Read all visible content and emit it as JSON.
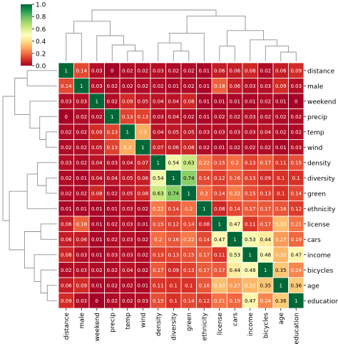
{
  "chart_data": {
    "type": "heatmap",
    "labels": [
      "distance",
      "male",
      "weekend",
      "precip",
      "temp",
      "wind",
      "density",
      "diversity",
      "green",
      "ethnicity",
      "license",
      "cars",
      "income",
      "bicycles",
      "age",
      "education"
    ],
    "matrix": [
      [
        "1",
        "0.14",
        "0.03",
        "0",
        "0.02",
        "0.02",
        "0.03",
        "0.02",
        "0.02",
        "0.01",
        "0.06",
        "0.06",
        "0.08",
        "0.02",
        "0.06",
        "0.09"
      ],
      [
        "0.14",
        "1",
        "0.03",
        "0.02",
        "0.02",
        "0.02",
        "0.02",
        "0.01",
        "0.02",
        "0.01",
        "0.18",
        "0.06",
        "0.03",
        "0.03",
        "0.09",
        "0.03"
      ],
      [
        "0.03",
        "0.03",
        "1",
        "0.02",
        "0.09",
        "0.05",
        "0.04",
        "0.04",
        "0.08",
        "0.01",
        "0.01",
        "0.01",
        "0.01",
        "0.02",
        "0.01",
        "0"
      ],
      [
        "0",
        "0.02",
        "0.02",
        "1",
        "0.13",
        "0.13",
        "0.03",
        "0.04",
        "0.02",
        "0.01",
        "0.02",
        "0.02",
        "0.03",
        "0.02",
        "0.02",
        "0.02"
      ],
      [
        "0.02",
        "0.02",
        "0.09",
        "0.13",
        "1",
        "0.3",
        "0.04",
        "0.05",
        "0.05",
        "0.03",
        "0.03",
        "0.03",
        "0.03",
        "0.04",
        "0.02",
        "0.02"
      ],
      [
        "0.02",
        "0.02",
        "0.05",
        "0.13",
        "0.3",
        "1",
        "0.07",
        "0.06",
        "0.08",
        "0.02",
        "0.01",
        "0.02",
        "0.02",
        "0.02",
        "0.01",
        "0.03"
      ],
      [
        "0.03",
        "0.02",
        "0.04",
        "0.03",
        "0.04",
        "0.07",
        "1",
        "0.54",
        "0.63",
        "0.22",
        "0.15",
        "0.2",
        "0.13",
        "0.17",
        "0.11",
        "0.15"
      ],
      [
        "0.02",
        "0.01",
        "0.04",
        "0.04",
        "0.05",
        "0.06",
        "0.54",
        "1",
        "0.74",
        "0.14",
        "0.12",
        "0.16",
        "0.13",
        "0.09",
        "0.1",
        "0.1"
      ],
      [
        "0.02",
        "0.02",
        "0.08",
        "0.02",
        "0.05",
        "0.08",
        "0.63",
        "0.74",
        "1",
        "0.2",
        "0.14",
        "0.22",
        "0.15",
        "0.13",
        "0.1",
        "0.14"
      ],
      [
        "0.01",
        "0.01",
        "0.01",
        "0.01",
        "0.03",
        "0.02",
        "0.22",
        "0.14",
        "0.2",
        "1",
        "0.08",
        "0.14",
        "0.17",
        "0.17",
        "0.16",
        "0.12"
      ],
      [
        "0.06",
        "0.18",
        "0.01",
        "0.02",
        "0.03",
        "0.01",
        "0.15",
        "0.12",
        "0.14",
        "0.08",
        "1",
        "0.47",
        "0.11",
        "0.17",
        "0.33",
        "0.21"
      ],
      [
        "0.06",
        "0.06",
        "0.01",
        "0.02",
        "0.03",
        "0.02",
        "0.2",
        "0.16",
        "0.22",
        "0.14",
        "0.47",
        "1",
        "0.53",
        "0.44",
        "0.27",
        "0.19"
      ],
      [
        "0.08",
        "0.03",
        "0.01",
        "0.03",
        "0.03",
        "0.02",
        "0.13",
        "0.13",
        "0.15",
        "0.17",
        "0.11",
        "0.53",
        "1",
        "0.48",
        "0.32",
        "0.47"
      ],
      [
        "0.02",
        "0.03",
        "0.02",
        "0.02",
        "0.04",
        "0.02",
        "0.17",
        "0.09",
        "0.13",
        "0.17",
        "0.17",
        "0.44",
        "0.48",
        "1",
        "0.35",
        "0.24"
      ],
      [
        "0.06",
        "0.09",
        "0.01",
        "0.02",
        "0.02",
        "0.01",
        "0.11",
        "0.1",
        "0.1",
        "0.16",
        "0.33",
        "0.27",
        "0.32",
        "0.35",
        "1",
        "0.36"
      ],
      [
        "0.09",
        "0.03",
        "0",
        "0.02",
        "0.02",
        "0.03",
        "0.15",
        "0.1",
        "0.14",
        "0.12",
        "0.21",
        "0.19",
        "0.47",
        "0.24",
        "0.36",
        "1"
      ]
    ],
    "colorbar": {
      "min": 0,
      "max": 1,
      "ticks": [
        "0.0",
        "0.2",
        "0.4",
        "0.6",
        "0.8",
        "1.0"
      ]
    },
    "colors": {
      "low": "#a50026",
      "mid": "#ffffbf",
      "high": "#006837",
      "dendrogram": "#8f8f8f",
      "cell_border": "#ffffff"
    }
  }
}
